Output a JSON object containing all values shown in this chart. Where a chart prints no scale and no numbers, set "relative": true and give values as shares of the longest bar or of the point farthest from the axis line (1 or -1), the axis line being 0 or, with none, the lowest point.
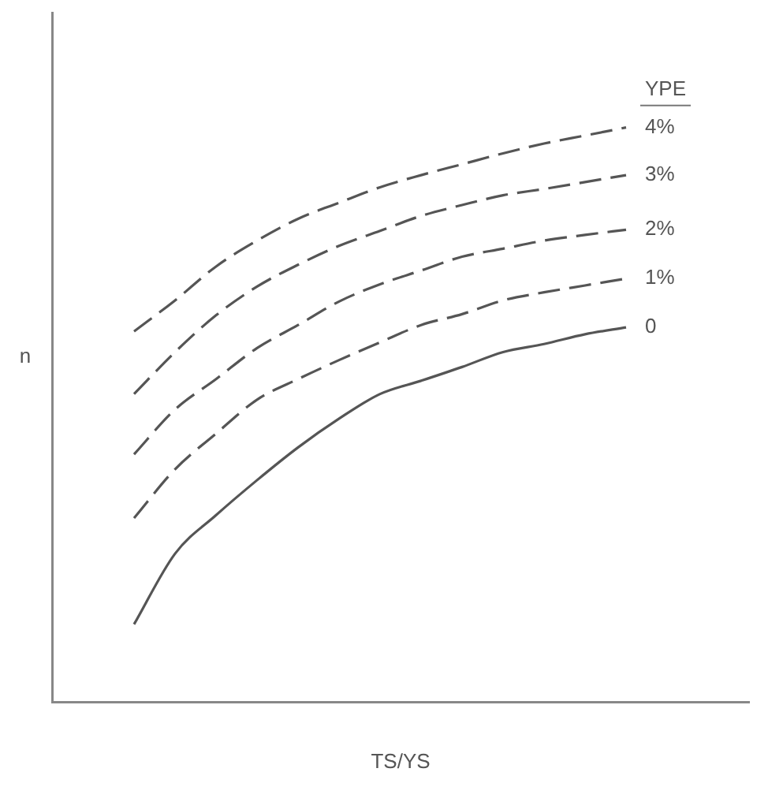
{
  "chart_data": {
    "type": "line",
    "relative": true,
    "xlabel": "TS/YS",
    "ylabel": "n",
    "legend_title": "YPE",
    "legend": false,
    "grid": false,
    "marker": "none",
    "categories": [
      null,
      null,
      null,
      null,
      null,
      null,
      null,
      null,
      null,
      null,
      null,
      null,
      null,
      null,
      null,
      null,
      null,
      null
    ],
    "series": [
      {
        "name": "4%",
        "color": "#555555",
        "line_style": "dashed",
        "values": [
          null,
          null,
          0.645,
          0.699,
          0.758,
          0.803,
          0.841,
          0.869,
          0.896,
          0.917,
          0.936,
          0.955,
          0.972,
          0.986,
          1,
          null,
          null,
          null
        ]
      },
      {
        "name": "3%",
        "color": "#555555",
        "line_style": "dashed",
        "values": [
          null,
          null,
          0.536,
          0.609,
          0.673,
          0.723,
          0.761,
          0.794,
          0.82,
          0.846,
          0.865,
          0.882,
          0.893,
          0.905,
          0.917,
          null,
          null,
          null
        ]
      },
      {
        "name": "2%",
        "color": "#555555",
        "line_style": "dashed",
        "values": [
          null,
          null,
          0.431,
          0.509,
          0.562,
          0.616,
          0.656,
          0.697,
          0.727,
          0.751,
          0.775,
          0.789,
          0.803,
          0.813,
          0.822,
          null,
          null,
          null
        ]
      },
      {
        "name": "1%",
        "color": "#555555",
        "line_style": "dashed",
        "values": [
          null,
          null,
          0.32,
          0.405,
          0.467,
          0.526,
          0.562,
          0.595,
          0.626,
          0.656,
          0.675,
          0.699,
          0.713,
          0.725,
          0.737,
          null,
          null,
          null
        ]
      },
      {
        "name": "0",
        "color": "#555555",
        "line_style": "solid",
        "values": [
          null,
          null,
          0.135,
          0.258,
          0.325,
          0.386,
          0.443,
          0.493,
          0.536,
          0.559,
          0.583,
          0.609,
          0.623,
          0.64,
          0.652,
          null,
          null,
          null
        ]
      }
    ]
  }
}
